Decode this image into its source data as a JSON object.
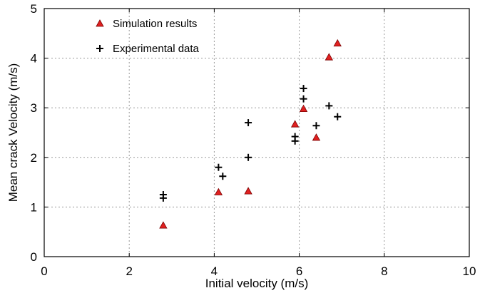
{
  "chart_data": {
    "type": "scatter",
    "xlabel": "Initial velocity (m/s)",
    "ylabel": "Mean crack Velocity (m/s)",
    "xlim": [
      0,
      10
    ],
    "ylim": [
      0,
      5
    ],
    "x_ticks": [
      "0",
      "2",
      "4",
      "6",
      "8",
      "10"
    ],
    "y_ticks": [
      "0",
      "1",
      "2",
      "3",
      "4",
      "5"
    ],
    "grid": true,
    "legend_position": "top-left",
    "series": [
      {
        "name": "Simulation results",
        "marker": "triangle",
        "color": "#e02020",
        "points": [
          {
            "x": 2.8,
            "y": 0.63
          },
          {
            "x": 4.1,
            "y": 1.3
          },
          {
            "x": 4.8,
            "y": 1.32
          },
          {
            "x": 5.9,
            "y": 2.67
          },
          {
            "x": 6.1,
            "y": 2.98
          },
          {
            "x": 6.4,
            "y": 2.4
          },
          {
            "x": 6.7,
            "y": 4.02
          },
          {
            "x": 6.9,
            "y": 4.3
          }
        ]
      },
      {
        "name": "Experimental data",
        "marker": "plus",
        "color": "#000000",
        "points": [
          {
            "x": 2.8,
            "y": 1.25
          },
          {
            "x": 2.8,
            "y": 1.18
          },
          {
            "x": 4.1,
            "y": 1.8
          },
          {
            "x": 4.2,
            "y": 1.62
          },
          {
            "x": 4.8,
            "y": 2.7
          },
          {
            "x": 4.8,
            "y": 2.0
          },
          {
            "x": 5.9,
            "y": 2.42
          },
          {
            "x": 5.9,
            "y": 2.33
          },
          {
            "x": 6.1,
            "y": 3.39
          },
          {
            "x": 6.1,
            "y": 3.18
          },
          {
            "x": 6.4,
            "y": 2.64
          },
          {
            "x": 6.7,
            "y": 3.04
          },
          {
            "x": 6.9,
            "y": 2.82
          }
        ]
      }
    ]
  }
}
